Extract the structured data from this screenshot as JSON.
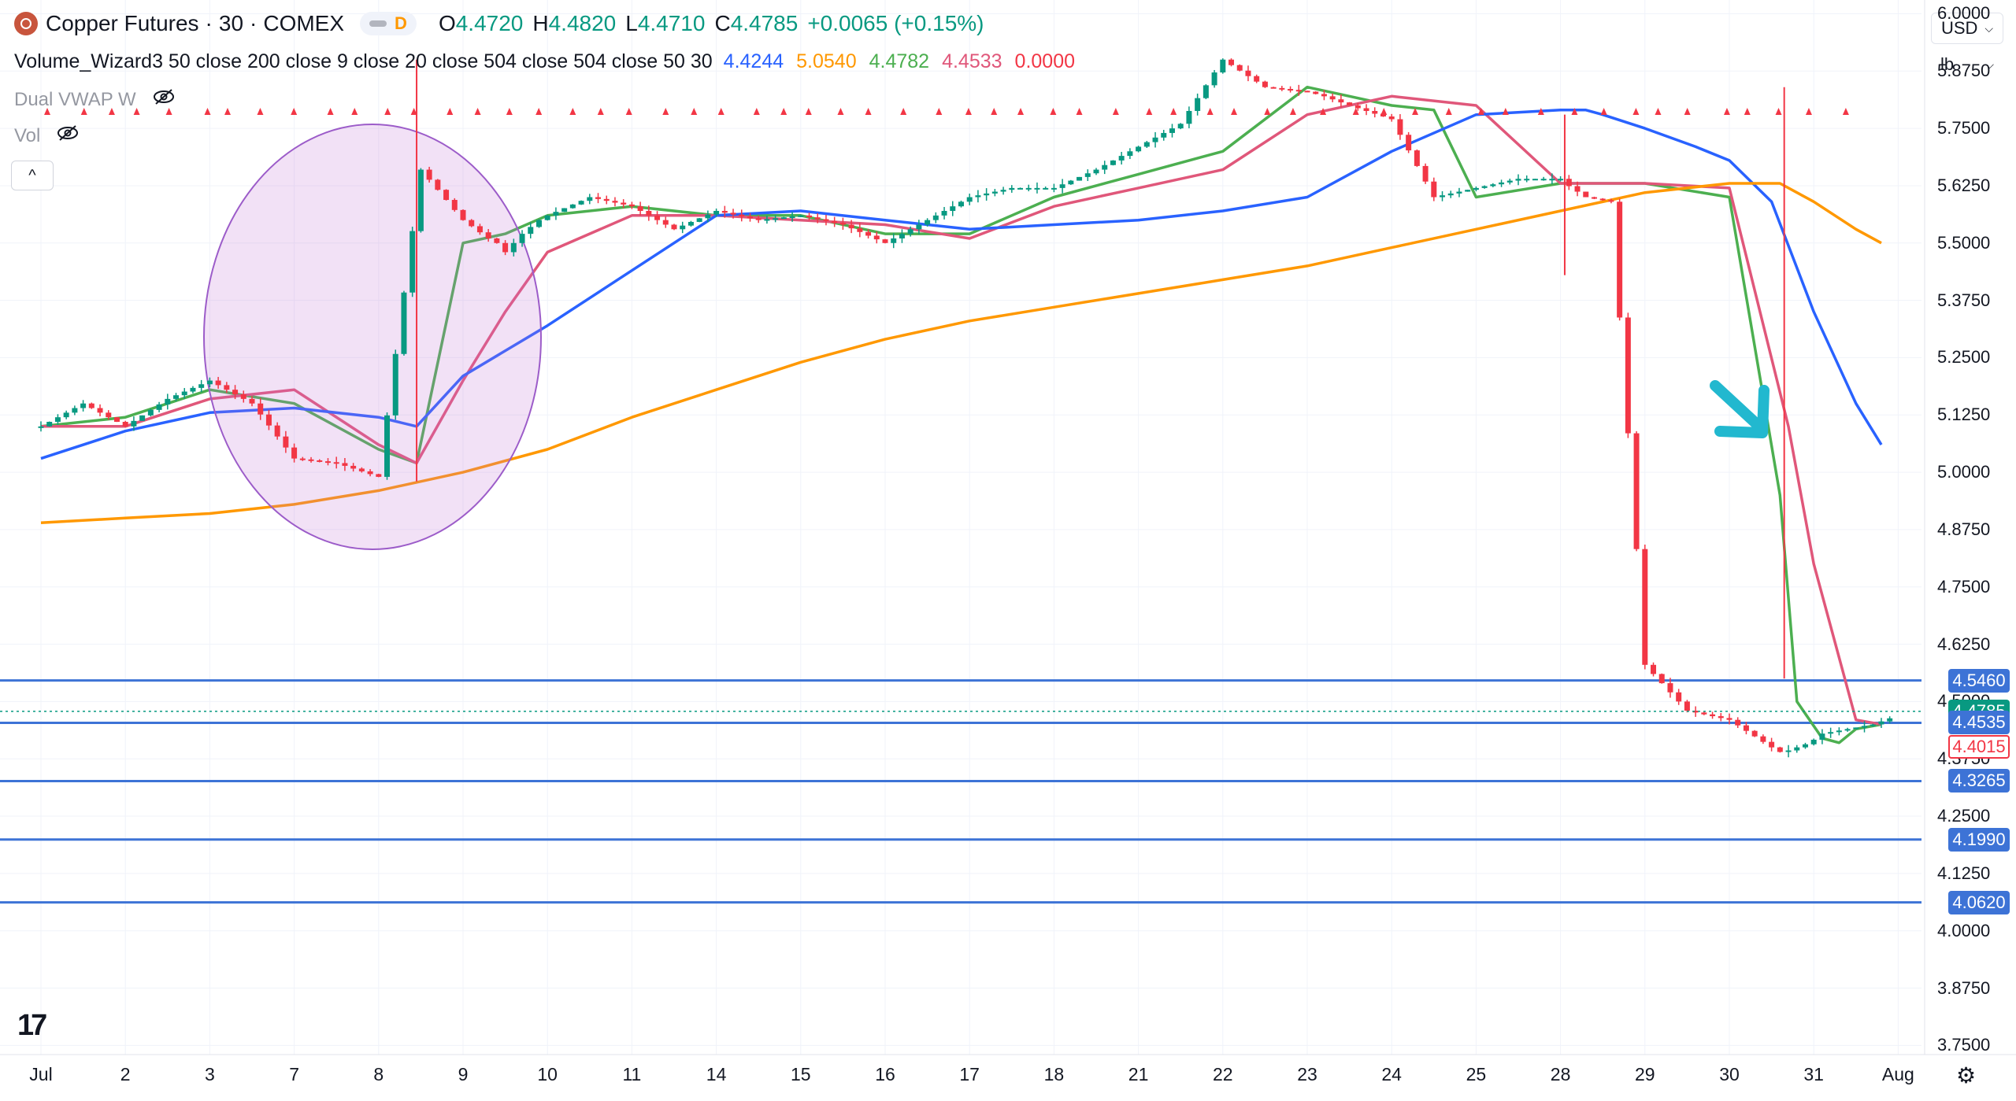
{
  "header": {
    "symbol_name": "Copper Futures",
    "interval": "30",
    "exchange": "COMEX",
    "separator": "·",
    "badge": "D",
    "ohlc": [
      {
        "label": "O",
        "value": "4.4720"
      },
      {
        "label": "H",
        "value": "4.4820"
      },
      {
        "label": "L",
        "value": "4.4710"
      },
      {
        "label": "C",
        "value": "4.4785"
      }
    ],
    "change": "+0.0065 (+0.15%)"
  },
  "study": {
    "name": "Volume_Wizard3 50 close 200 close 9 close 20 close 504 close 504 close 50 30",
    "values": [
      {
        "text": "4.4244",
        "color": "#2962ff"
      },
      {
        "text": "5.0540",
        "color": "#ff9800"
      },
      {
        "text": "4.4782",
        "color": "#4caf50"
      },
      {
        "text": "4.4533",
        "color": "#e0577a"
      },
      {
        "text": "0.0000",
        "color": "#f23645"
      }
    ]
  },
  "indicators": {
    "vwap_label": "Dual VWAP W",
    "vol_label": "Vol"
  },
  "controls": {
    "currency": "USD",
    "unit": "lb",
    "collapse_glyph": "^"
  },
  "icons": {
    "logo": "copper-logo-icon",
    "eye": "eye-crossed-icon",
    "settings": "gear-icon",
    "brand": "tradingview-logo-icon"
  },
  "colors": {
    "up": "#089981",
    "down": "#f23645",
    "ma_fast": "#4caf50",
    "ma_mid": "#e0577a",
    "ma_slow": "#2962ff",
    "ma_long": "#ff9800",
    "level": "#3d73d6",
    "arrow": "#22b8cf",
    "ellipse": "#9c5cc9"
  },
  "brand_text": "17",
  "chart_data": {
    "type": "line",
    "y_axis": {
      "ticks": [
        "6.0000",
        "5.8750",
        "5.7500",
        "5.6250",
        "5.5000",
        "5.3750",
        "5.2500",
        "5.1250",
        "5.0000",
        "4.8750",
        "4.7500",
        "4.6250",
        "4.5000",
        "4.3750",
        "4.2500",
        "4.1250",
        "4.0000",
        "3.8750",
        "3.7500"
      ],
      "range": [
        3.73,
        6.03
      ]
    },
    "x_axis": {
      "ticks": [
        "Jul",
        "2",
        "3",
        "7",
        "8",
        "9",
        "10",
        "11",
        "14",
        "15",
        "16",
        "17",
        "18",
        "21",
        "22",
        "23",
        "24",
        "25",
        "28",
        "29",
        "30",
        "31",
        "Aug"
      ]
    },
    "price_labels": [
      {
        "text": "4.5460",
        "value": 4.546,
        "style": "level"
      },
      {
        "text": "4.4785",
        "value": 4.4785,
        "style": "last"
      },
      {
        "text": "4.4535",
        "value": 4.4535,
        "style": "level"
      },
      {
        "text": "4.4015",
        "value": 4.4015,
        "style": "outline"
      },
      {
        "text": "4.3265",
        "value": 4.3265,
        "style": "level"
      },
      {
        "text": "4.1990",
        "value": 4.199,
        "style": "level"
      },
      {
        "text": "4.0620",
        "value": 4.062,
        "style": "level"
      }
    ],
    "horizontal_levels": [
      4.546,
      4.4535,
      4.3265,
      4.199,
      4.062
    ],
    "last_price": 4.4785,
    "series": [
      {
        "name": "close",
        "x": [
          0,
          0.5,
          0.8,
          1,
          1.5,
          2,
          2.5,
          3,
          3.5,
          4,
          4.5,
          5,
          5.3,
          5.35,
          5.4,
          5.5,
          5.7,
          5.9,
          6,
          6.5,
          7,
          7.5,
          8,
          8.5,
          9,
          9.5,
          10,
          10.5,
          11,
          11.5,
          12,
          12.5,
          13,
          13.5,
          14,
          14.5,
          15,
          15.2,
          15.5,
          16,
          16.5,
          17,
          17.5,
          18,
          18.05,
          18.3,
          18.6,
          19,
          19.5,
          20,
          20.5,
          20.6,
          20.65,
          20.8,
          20.95,
          21.1,
          21.4,
          21.7,
          22
        ],
        "y": [
          5.1,
          5.15,
          5.12,
          5.1,
          5.16,
          5.2,
          5.15,
          5.03,
          5.02,
          4.99,
          5.66,
          5.55,
          5.51,
          5.5,
          5.5,
          5.48,
          5.52,
          5.55,
          5.56,
          5.6,
          5.58,
          5.53,
          5.57,
          5.55,
          5.56,
          5.54,
          5.5,
          5.55,
          5.6,
          5.62,
          5.62,
          5.66,
          5.71,
          5.76,
          5.9,
          5.84,
          5.83,
          5.82,
          5.8,
          5.77,
          5.6,
          5.62,
          5.64,
          5.64,
          5.63,
          5.6,
          5.59,
          4.58,
          4.48,
          4.46,
          4.4,
          4.39,
          4.39,
          4.4,
          4.41,
          4.43,
          4.44,
          4.45,
          4.47
        ]
      },
      {
        "name": "",
        "x": [
          0,
          1,
          2,
          3,
          4,
          4.45,
          5,
          5.5,
          6,
          7,
          8,
          9,
          10,
          11,
          12,
          13,
          14,
          15,
          15.5,
          16,
          16.5,
          17,
          18,
          19,
          20,
          20.6,
          20.8,
          21.1,
          21.3,
          21.5,
          21.8
        ],
        "y": [
          5.1,
          5.12,
          5.18,
          5.15,
          5.05,
          5.02,
          5.5,
          5.52,
          5.56,
          5.58,
          5.56,
          5.56,
          5.52,
          5.52,
          5.6,
          5.65,
          5.7,
          5.84,
          5.82,
          5.8,
          5.79,
          5.6,
          5.63,
          5.63,
          5.6,
          4.95,
          4.5,
          4.42,
          4.41,
          4.44,
          4.45
        ]
      },
      {
        "name": "",
        "x": [
          0,
          1,
          2,
          3,
          4,
          4.45,
          5,
          5.5,
          6,
          7,
          8,
          9,
          10,
          11,
          12,
          13,
          14,
          15,
          16,
          17,
          18,
          19,
          20,
          20.7,
          21,
          21.5,
          21.8
        ],
        "y": [
          5.1,
          5.1,
          5.16,
          5.18,
          5.06,
          5.02,
          5.2,
          5.35,
          5.48,
          5.56,
          5.56,
          5.55,
          5.54,
          5.51,
          5.58,
          5.62,
          5.66,
          5.78,
          5.82,
          5.8,
          5.63,
          5.63,
          5.62,
          5.1,
          4.8,
          4.46,
          4.45
        ]
      },
      {
        "name": "",
        "x": [
          0,
          1,
          2,
          3,
          4,
          4.45,
          5,
          6,
          7,
          8,
          9,
          10,
          11,
          12,
          13,
          14,
          15,
          16,
          17,
          18,
          18.3,
          18.5,
          19,
          19.6,
          20,
          20.5,
          21,
          21.5,
          21.8
        ],
        "y": [
          5.03,
          5.09,
          5.13,
          5.14,
          5.12,
          5.1,
          5.21,
          5.32,
          5.44,
          5.56,
          5.57,
          5.55,
          5.53,
          5.54,
          5.55,
          5.57,
          5.6,
          5.7,
          5.78,
          5.79,
          5.79,
          5.78,
          5.75,
          5.71,
          5.68,
          5.59,
          5.35,
          5.15,
          5.06
        ]
      },
      {
        "name": "",
        "x": [
          0,
          1,
          2,
          3,
          4,
          5,
          6,
          7,
          8,
          9,
          10,
          11,
          12,
          13,
          14,
          15,
          16,
          17,
          18,
          19,
          20,
          20.6,
          21,
          21.5,
          21.8
        ],
        "y": [
          4.89,
          4.9,
          4.91,
          4.93,
          4.96,
          5.0,
          5.05,
          5.12,
          5.18,
          5.24,
          5.29,
          5.33,
          5.36,
          5.39,
          5.42,
          5.45,
          5.49,
          5.53,
          5.57,
          5.61,
          5.63,
          5.63,
          5.59,
          5.53,
          5.5
        ]
      }
    ]
  }
}
